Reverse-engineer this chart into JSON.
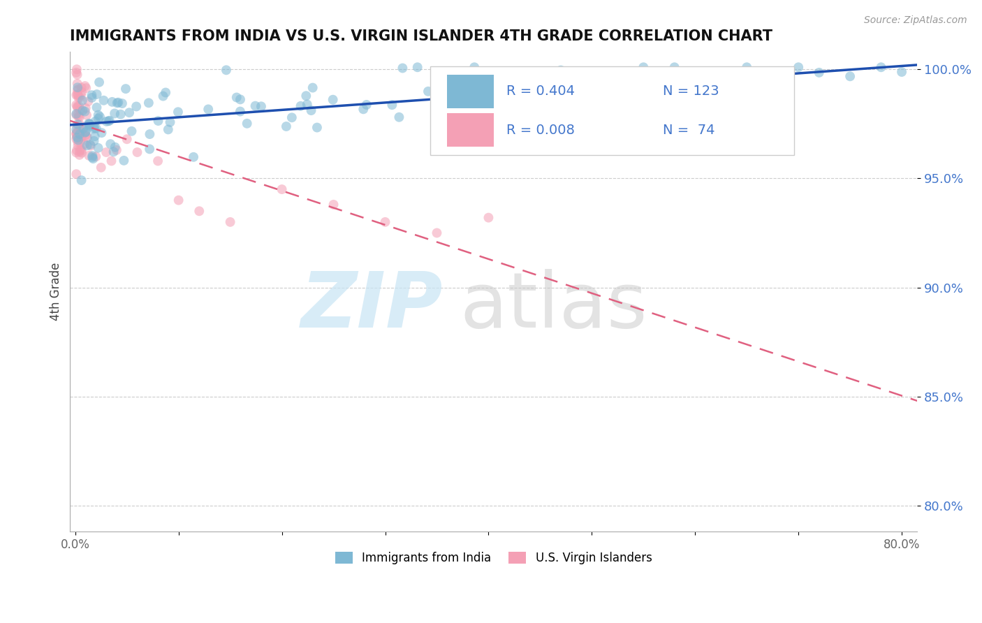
{
  "title": "IMMIGRANTS FROM INDIA VS U.S. VIRGIN ISLANDER 4TH GRADE CORRELATION CHART",
  "source": "Source: ZipAtlas.com",
  "ylabel": "4th Grade",
  "xlim": [
    -0.005,
    0.815
  ],
  "ylim": [
    0.788,
    1.008
  ],
  "xticks": [
    0.0,
    0.1,
    0.2,
    0.3,
    0.4,
    0.5,
    0.6,
    0.7,
    0.8
  ],
  "xticklabels": [
    "0.0%",
    "",
    "",
    "",
    "",
    "",
    "",
    "",
    "80.0%"
  ],
  "yticks": [
    0.8,
    0.85,
    0.9,
    0.95,
    1.0
  ],
  "yticklabels": [
    "80.0%",
    "85.0%",
    "90.0%",
    "95.0%",
    "100.0%"
  ],
  "blue_color": "#7EB8D4",
  "pink_color": "#F4A0B5",
  "blue_line_color": "#1E4FAF",
  "pink_line_color": "#E06080",
  "legend_label_blue": "Immigrants from India",
  "legend_label_pink": "U.S. Virgin Islanders",
  "R_blue": "0.404",
  "N_blue": "123",
  "R_pink": "0.008",
  "N_pink": " 74",
  "background_color": "#ffffff",
  "grid_color": "#cccccc",
  "title_color": "#111111",
  "ytick_color": "#4477CC"
}
